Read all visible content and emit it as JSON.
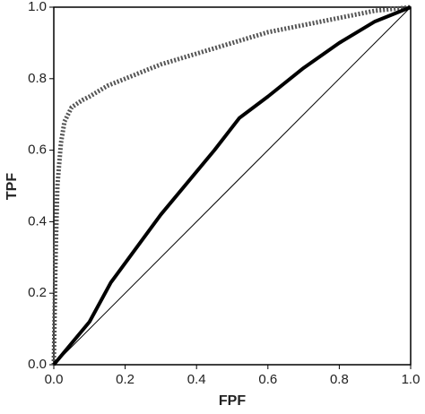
{
  "chart_data": {
    "type": "line",
    "x_label": "FPF",
    "y_label": "TPF",
    "xlim": [
      0,
      1
    ],
    "ylim": [
      0,
      1
    ],
    "xticks": [
      {
        "value": 0,
        "label": "0.0"
      },
      0.2,
      0.4,
      0.6,
      0.8,
      {
        "value": 1,
        "label": "1.0"
      }
    ],
    "yticks": [
      {
        "value": 0,
        "label": "0.0"
      },
      0.2,
      0.4,
      0.6,
      0.8,
      {
        "value": 1,
        "label": "1.0"
      }
    ],
    "series": [
      {
        "color": "#555555",
        "line_style": "dotted",
        "line_width": 5,
        "x": [
          0,
          0.005,
          0.01,
          0.02,
          0.03,
          0.05,
          0.08,
          0.1,
          0.15,
          0.2,
          0.3,
          0.4,
          0.5,
          0.6,
          0.7,
          0.8,
          0.9,
          1
        ],
        "values": [
          0,
          0.3,
          0.5,
          0.62,
          0.68,
          0.72,
          0.74,
          0.75,
          0.78,
          0.8,
          0.84,
          0.87,
          0.9,
          0.93,
          0.95,
          0.97,
          0.99,
          1
        ]
      },
      {
        "color": "#000000",
        "line_style": "solid",
        "line_width": 4,
        "x": [
          0,
          0.1,
          0.16,
          0.3,
          0.45,
          0.52,
          0.6,
          0.7,
          0.8,
          0.9,
          1
        ],
        "values": [
          0,
          0.12,
          0.23,
          0.42,
          0.6,
          0.69,
          0.75,
          0.83,
          0.9,
          0.96,
          1
        ]
      },
      {
        "color": "#000000",
        "line_style": "solid",
        "line_width": 1,
        "x": [
          0,
          1
        ],
        "values": [
          0,
          1
        ]
      }
    ]
  }
}
